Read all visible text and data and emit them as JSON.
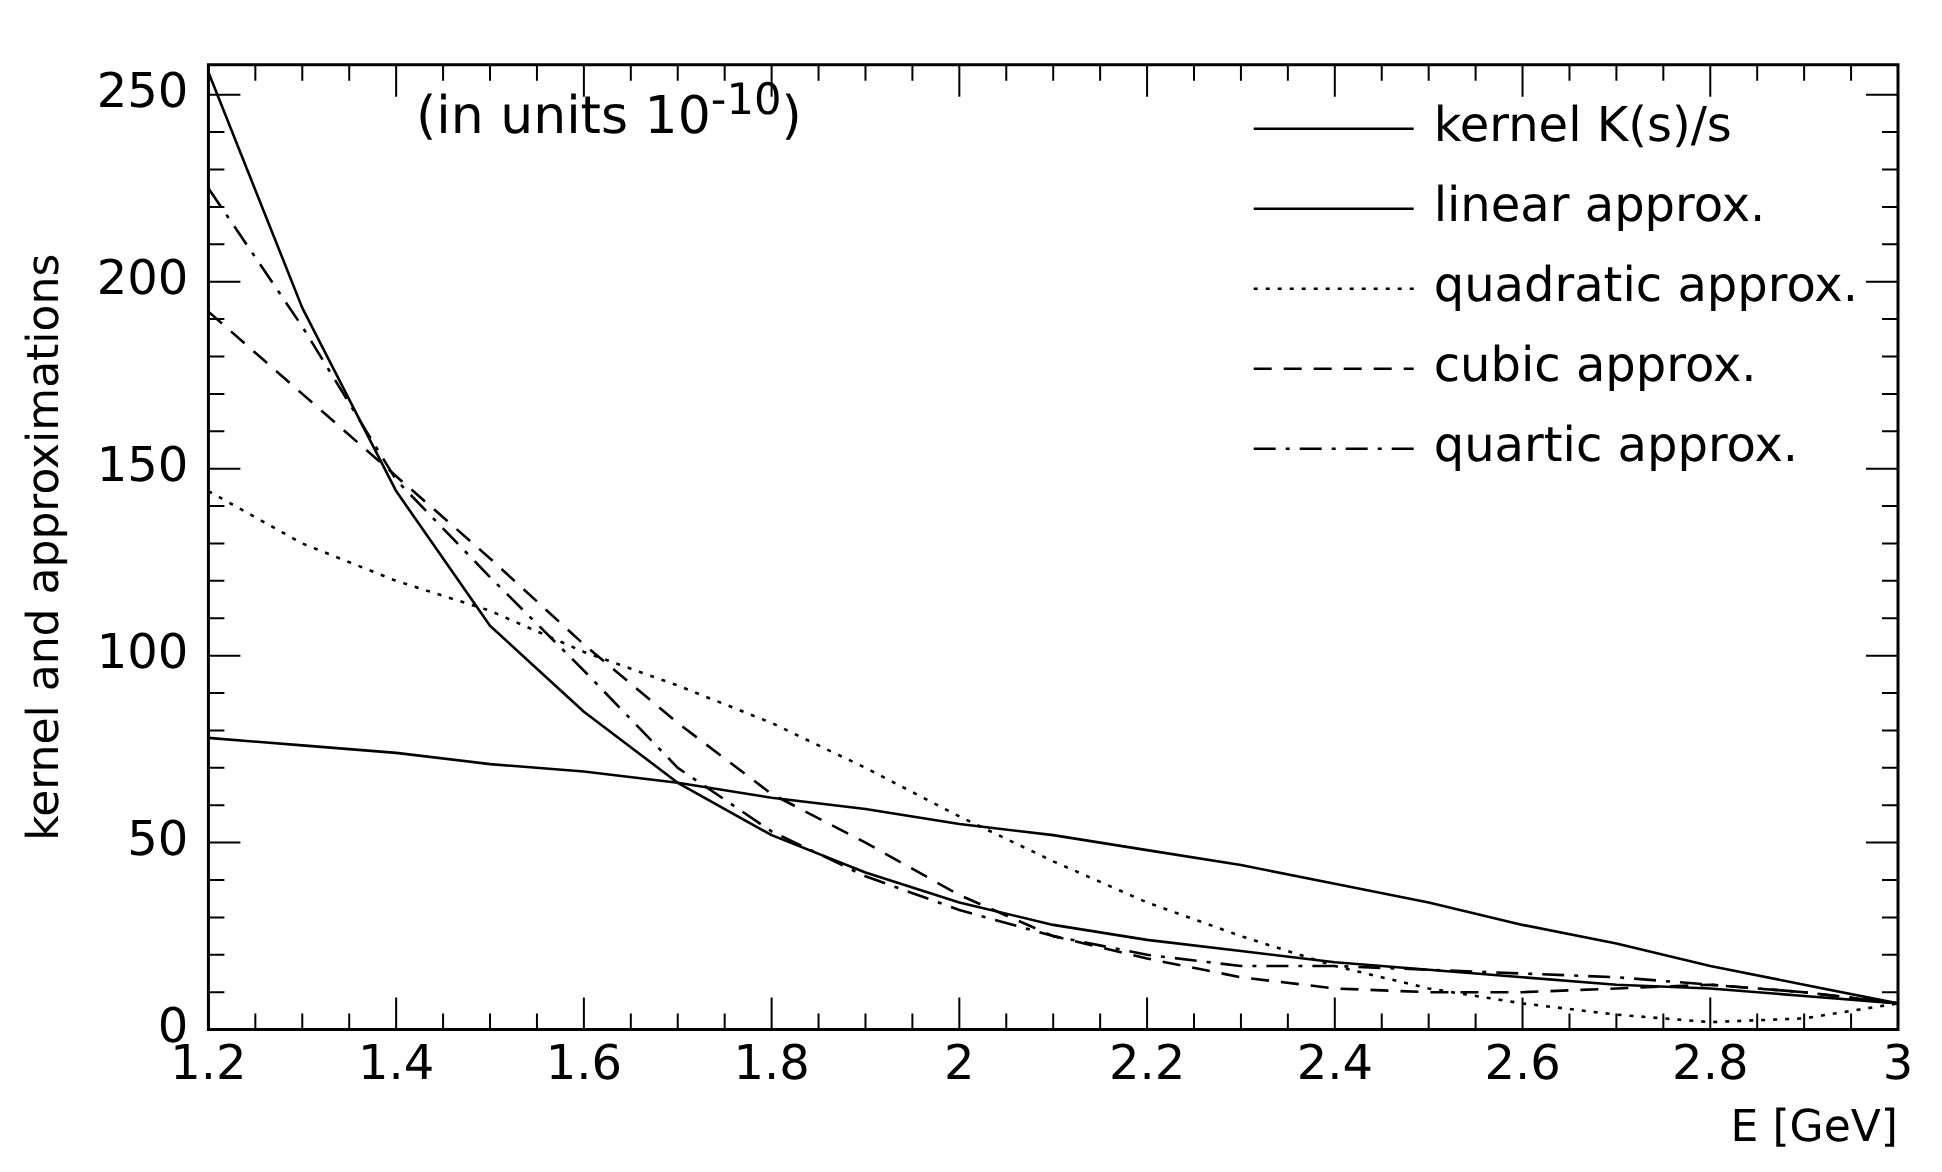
{
  "chart_data": {
    "type": "line",
    "x": [
      1.2,
      1.3,
      1.4,
      1.5,
      1.6,
      1.7,
      1.8,
      1.9,
      2.0,
      2.1,
      2.2,
      2.3,
      2.4,
      2.5,
      2.6,
      2.7,
      2.8,
      2.9,
      3.0
    ],
    "series": [
      {
        "name": "kernel K(s)/s",
        "color": "#000000",
        "line_style": "solid",
        "values": [
          256,
          193,
          144,
          108,
          85,
          66,
          52,
          42,
          34,
          28,
          24,
          21,
          18,
          16,
          14,
          12,
          11,
          9,
          7
        ]
      },
      {
        "name": "linear approx.",
        "color": "#000000",
        "line_style": "solid",
        "values": [
          78,
          76,
          74,
          71,
          69,
          66,
          62,
          59,
          55,
          52,
          48,
          44,
          39,
          34,
          28,
          23,
          17,
          12,
          7
        ]
      },
      {
        "name": "quadratic approx.",
        "color": "#000000",
        "line_style": "dotted",
        "values": [
          144,
          130,
          120,
          112,
          101,
          92,
          82,
          70,
          57,
          45,
          34,
          25,
          17,
          11,
          7,
          4,
          2,
          3,
          7
        ]
      },
      {
        "name": "cubic approx.",
        "color": "#000000",
        "line_style": "dashed",
        "values": [
          192,
          170,
          148,
          126,
          103,
          82,
          63,
          50,
          36,
          25,
          19,
          14,
          11,
          10,
          10,
          11,
          12,
          10,
          7
        ]
      },
      {
        "name": "quartic approx.",
        "color": "#000000",
        "line_style": "dashdot",
        "values": [
          225,
          188,
          147,
          121,
          96,
          70,
          53,
          41,
          32,
          25,
          20,
          17,
          17,
          16,
          15,
          14,
          12,
          10,
          7
        ]
      }
    ],
    "xlabel": "E [GeV]",
    "ylabel": "kernel and approximations",
    "annotations": [
      "(in units 10$^{-10}$)"
    ],
    "xlim": [
      1.2,
      3.0
    ],
    "xticks": [
      1.2,
      {
        "value": 1.25,
        "label": null
      },
      {
        "value": 1.3,
        "label": null
      },
      {
        "value": 1.35,
        "label": null
      },
      1.4,
      {
        "value": 1.45,
        "label": null
      },
      {
        "value": 1.5,
        "label": null
      },
      {
        "value": 1.55,
        "label": null
      },
      1.6,
      {
        "value": 1.65,
        "label": null
      },
      {
        "value": 1.7,
        "label": null
      },
      {
        "value": 1.75,
        "label": null
      },
      1.8,
      {
        "value": 1.85,
        "label": null
      },
      {
        "value": 1.9,
        "label": null
      },
      {
        "value": 1.95,
        "label": null
      },
      2,
      {
        "value": 2.05,
        "label": null
      },
      {
        "value": 2.1,
        "label": null
      },
      {
        "value": 2.15,
        "label": null
      },
      2.2,
      {
        "value": 2.25,
        "label": null
      },
      {
        "value": 2.3,
        "label": null
      },
      {
        "value": 2.35,
        "label": null
      },
      2.4,
      {
        "value": 2.45,
        "label": null
      },
      {
        "value": 2.5,
        "label": null
      },
      {
        "value": 2.55,
        "label": null
      },
      2.6,
      {
        "value": 2.65,
        "label": null
      },
      {
        "value": 2.7,
        "label": null
      },
      {
        "value": 2.75,
        "label": null
      },
      2.8,
      {
        "value": 2.85,
        "label": null
      },
      {
        "value": 2.9,
        "label": null
      },
      {
        "value": 2.95,
        "label": null
      },
      3
    ],
    "ylim": [
      0,
      258
    ],
    "yticks": [
      0,
      {
        "value": 10,
        "label": null
      },
      {
        "value": 20,
        "label": null
      },
      {
        "value": 30,
        "label": null
      },
      {
        "value": 40,
        "label": null
      },
      50,
      {
        "value": 60,
        "label": null
      },
      {
        "value": 70,
        "label": null
      },
      {
        "value": 80,
        "label": null
      },
      {
        "value": 90,
        "label": null
      },
      100,
      {
        "value": 110,
        "label": null
      },
      {
        "value": 120,
        "label": null
      },
      {
        "value": 130,
        "label": null
      },
      {
        "value": 140,
        "label": null
      },
      150,
      {
        "value": 160,
        "label": null
      },
      {
        "value": 170,
        "label": null
      },
      {
        "value": 180,
        "label": null
      },
      {
        "value": 190,
        "label": null
      },
      200,
      {
        "value": 210,
        "label": null
      },
      {
        "value": 220,
        "label": null
      },
      {
        "value": 230,
        "label": null
      },
      {
        "value": 240,
        "label": null
      },
      250
    ],
    "grid": false,
    "legend": "top right",
    "marker": "none"
  }
}
